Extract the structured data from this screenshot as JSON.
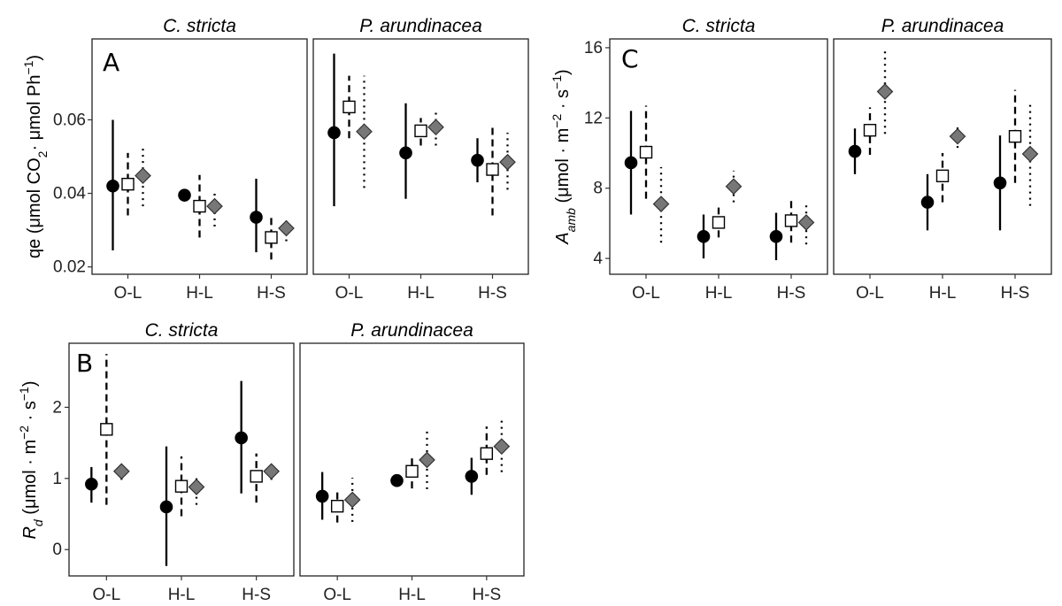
{
  "chart_data": [
    {
      "type": "scatter",
      "panel_letter": "A",
      "ylabel_main": "qe (μmol CO",
      "ylabel_sub": "2",
      "ylabel_rest": "· μmol Ph",
      "ylabel_sup": "−1",
      "ylabel_close": ")",
      "categories": [
        "O-L",
        "H-L",
        "H-S"
      ],
      "ylim": [
        0.018,
        0.082
      ],
      "yticks": [
        0.02,
        0.04,
        0.06
      ],
      "yticklabels": [
        "0.02",
        "0.04",
        "0.06"
      ],
      "grid": false,
      "facets": [
        {
          "title": "C. stricta",
          "series": [
            {
              "marker": "circle",
              "line": "solid",
              "y": [
                0.042,
                0.0395,
                0.0335
              ],
              "lo": [
                0.0245,
                0.038,
                0.024
              ],
              "hi": [
                0.06,
                0.041,
                0.044
              ]
            },
            {
              "marker": "square",
              "line": "dashed",
              "y": [
                0.0425,
                0.0365,
                0.028
              ],
              "lo": [
                0.034,
                0.028,
                0.022
              ],
              "hi": [
                0.051,
                0.045,
                0.034
              ]
            },
            {
              "marker": "diamond",
              "line": "dotted",
              "y": [
                0.0448,
                0.0365,
                0.0305
              ],
              "lo": [
                0.0365,
                0.031,
                0.027
              ],
              "hi": [
                0.0525,
                0.041,
                0.033
              ]
            }
          ]
        },
        {
          "title": "P. arundinacea",
          "series": [
            {
              "marker": "circle",
              "line": "solid",
              "y": [
                0.0565,
                0.051,
                0.049
              ],
              "lo": [
                0.0365,
                0.0385,
                0.043
              ],
              "hi": [
                0.078,
                0.0645,
                0.055
              ]
            },
            {
              "marker": "square",
              "line": "dashed",
              "y": [
                0.0635,
                0.057,
                0.0465
              ],
              "lo": [
                0.055,
                0.053,
                0.034
              ],
              "hi": [
                0.072,
                0.0605,
                0.058
              ]
            },
            {
              "marker": "diamond",
              "line": "dotted",
              "y": [
                0.0568,
                0.058,
                0.0485
              ],
              "lo": [
                0.0415,
                0.053,
                0.041
              ],
              "hi": [
                0.072,
                0.0625,
                0.0565
              ]
            }
          ]
        }
      ]
    },
    {
      "type": "scatter",
      "panel_letter": "C",
      "ylabel_main": "A",
      "ylabel_sub": "amb",
      "ylabel_rest": " (μmol · m",
      "ylabel_sup": "−2",
      "ylabel_rest2": " · s",
      "ylabel_sup2": "−1",
      "ylabel_close": ")",
      "categories": [
        "O-L",
        "H-L",
        "H-S"
      ],
      "ylim": [
        3.1,
        16.5
      ],
      "yticks": [
        4,
        8,
        12,
        16
      ],
      "yticklabels": [
        "4",
        "8",
        "12",
        "16"
      ],
      "grid": false,
      "facets": [
        {
          "title": "C. stricta",
          "series": [
            {
              "marker": "circle",
              "line": "solid",
              "y": [
                9.45,
                5.25,
                5.25
              ],
              "lo": [
                6.5,
                4.0,
                3.9
              ],
              "hi": [
                12.4,
                6.5,
                6.6
              ]
            },
            {
              "marker": "square",
              "line": "dashed",
              "y": [
                10.05,
                6.05,
                6.15
              ],
              "lo": [
                7.4,
                5.2,
                4.9
              ],
              "hi": [
                12.7,
                6.9,
                7.4
              ]
            },
            {
              "marker": "diamond",
              "line": "dotted",
              "y": [
                7.1,
                8.1,
                6.05
              ],
              "lo": [
                4.9,
                7.2,
                4.8
              ],
              "hi": [
                9.2,
                9.0,
                7.2
              ]
            }
          ]
        },
        {
          "title": "P. arundinacea",
          "series": [
            {
              "marker": "circle",
              "line": "solid",
              "y": [
                10.1,
                7.2,
                8.3
              ],
              "lo": [
                8.8,
                5.6,
                5.6
              ],
              "hi": [
                11.4,
                8.8,
                11.0
              ]
            },
            {
              "marker": "square",
              "line": "dashed",
              "y": [
                11.3,
                8.7,
                10.95
              ],
              "lo": [
                9.9,
                7.2,
                8.3
              ],
              "hi": [
                12.6,
                10.0,
                13.6
              ]
            },
            {
              "marker": "diamond",
              "line": "dotted",
              "y": [
                13.5,
                10.95,
                9.95
              ],
              "lo": [
                11.1,
                10.3,
                7.0
              ],
              "hi": [
                16.0,
                11.7,
                12.8
              ]
            }
          ]
        }
      ]
    },
    {
      "type": "scatter",
      "panel_letter": "B",
      "ylabel_main": "R",
      "ylabel_sub": "d",
      "ylabel_rest": " (μmol · m",
      "ylabel_sup": "−2",
      "ylabel_rest2": " · s",
      "ylabel_sup2": "−1",
      "ylabel_close": ")",
      "categories": [
        "O-L",
        "H-L",
        "H-S"
      ],
      "ylim": [
        -0.37,
        2.9
      ],
      "yticks": [
        0,
        1,
        2
      ],
      "yticklabels": [
        "0",
        "1",
        "2"
      ],
      "grid": false,
      "facets": [
        {
          "title": "C. stricta",
          "series": [
            {
              "marker": "circle",
              "line": "solid",
              "y": [
                0.92,
                0.6,
                1.57
              ],
              "lo": [
                0.66,
                -0.23,
                0.79
              ],
              "hi": [
                1.16,
                1.45,
                2.37
              ]
            },
            {
              "marker": "square",
              "line": "dashed",
              "y": [
                1.69,
                0.89,
                1.03
              ],
              "lo": [
                0.63,
                0.47,
                0.66
              ],
              "hi": [
                2.75,
                1.31,
                1.35
              ]
            },
            {
              "marker": "diamond",
              "line": "dotted",
              "y": [
                1.1,
                0.88,
                1.1
              ],
              "lo": [
                0.98,
                0.63,
                0.98
              ],
              "hi": [
                1.2,
                1.06,
                1.21
              ]
            }
          ]
        },
        {
          "title": "P. arundinacea",
          "series": [
            {
              "marker": "circle",
              "line": "solid",
              "y": [
                0.75,
                0.97,
                1.03
              ],
              "lo": [
                0.42,
                0.91,
                0.77
              ],
              "hi": [
                1.09,
                1.03,
                1.29
              ]
            },
            {
              "marker": "square",
              "line": "dashed",
              "y": [
                0.61,
                1.1,
                1.35
              ],
              "lo": [
                0.38,
                0.86,
                1.05
              ],
              "hi": [
                0.85,
                1.33,
                1.73
              ]
            },
            {
              "marker": "diamond",
              "line": "dotted",
              "y": [
                0.7,
                1.26,
                1.45
              ],
              "lo": [
                0.39,
                0.85,
                1.09
              ],
              "hi": [
                1.01,
                1.67,
                1.82
              ]
            }
          ]
        }
      ]
    }
  ]
}
